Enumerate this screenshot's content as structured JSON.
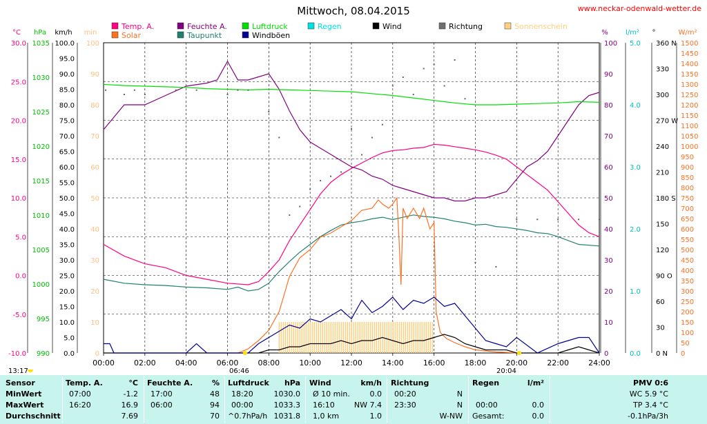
{
  "page": {
    "title": "Mittwoch, 08.04.2015",
    "site": "www.neckar-odenwald-wetter.de",
    "sunrise": "06:46",
    "sunset": "20:04",
    "moonrise": "13:17"
  },
  "chart_data": {
    "type": "line",
    "title": "Mittwoch, 08.04.2015",
    "xlabel": "",
    "x_range": [
      0,
      24
    ],
    "x_ticks": [
      "00:00",
      "02:00",
      "04:00",
      "06:00",
      "08:00",
      "10:00",
      "12:00",
      "14:00",
      "16:00",
      "18:00",
      "20:00",
      "22:00",
      "24:00"
    ],
    "grid": true,
    "legend_placement": "top",
    "legend": [
      {
        "name": "Temp. A.",
        "color": "#ff0080"
      },
      {
        "name": "Feuchte A.",
        "color": "#800080"
      },
      {
        "name": "Luftdruck",
        "color": "#00e000"
      },
      {
        "name": "Regen",
        "color": "#00e0e0"
      },
      {
        "name": "Wind",
        "color": "#000000"
      },
      {
        "name": "Richtung",
        "color": "#707070"
      },
      {
        "name": "Sonnenschein",
        "color": "#ffd080"
      },
      {
        "name": "Solar",
        "color": "#ff7020"
      },
      {
        "name": "Taupunkt",
        "color": "#208070"
      },
      {
        "name": "Windböen",
        "color": "#000090"
      }
    ],
    "axes": {
      "temp": {
        "unit": "°C",
        "range": [
          -10,
          30
        ],
        "color": "#ff0080",
        "ticks": [
          "30.0",
          "25.0",
          "20.0",
          "15.0",
          "10.0",
          "5.0",
          "0.0",
          "-5.0",
          "-10.0"
        ]
      },
      "pressure": {
        "unit": "hPa",
        "range": [
          990,
          1040
        ],
        "color": "#00c000",
        "ticks": [
          "1035",
          "1030",
          "1025",
          "1020",
          "1015",
          "1010",
          "1005",
          "1000",
          "995",
          "990"
        ]
      },
      "wind": {
        "unit": "km/h",
        "range": [
          0,
          100
        ],
        "color": "#000000",
        "ticks": [
          "100.0",
          "95.0",
          "90.0",
          "85.0",
          "80.0",
          "75.0",
          "70.0",
          "65.0",
          "60.0",
          "55.0",
          "50.0",
          "45.0",
          "40.0",
          "35.0",
          "30.0",
          "25.0",
          "20.0",
          "15.0",
          "10.0",
          "5.0",
          "0.0"
        ]
      },
      "sunshine": {
        "unit": "min",
        "range": [
          0,
          100
        ],
        "color": "#ffd080",
        "ticks": [
          "100",
          "90",
          "80",
          "70",
          "60",
          "50",
          "40",
          "30",
          "20",
          "10",
          "0"
        ]
      },
      "humidity": {
        "unit": "%",
        "range": [
          0,
          100
        ],
        "color": "#800080",
        "ticks": [
          "100",
          "90",
          "80",
          "70",
          "60",
          "50",
          "40",
          "30",
          "20",
          "10",
          "0"
        ]
      },
      "rain": {
        "unit": "l/m²",
        "range": [
          0,
          5
        ],
        "color": "#00c0c0",
        "ticks": [
          "5.0",
          "4.0",
          "3.0",
          "2.0",
          "1.0",
          "0.0"
        ]
      },
      "direction": {
        "unit": "°",
        "range": [
          0,
          360
        ],
        "color": "#000000",
        "ticks": [
          "360 N",
          "330",
          "300",
          "270 W",
          "240",
          "210",
          "180 S",
          "150",
          "120",
          "90 O",
          "60",
          "30",
          "0 N"
        ]
      },
      "solar": {
        "unit": "W/m²",
        "range": [
          0,
          1500
        ],
        "color": "#ff7020",
        "ticks": [
          "1500",
          "1450",
          "1400",
          "1350",
          "1300",
          "1250",
          "1200",
          "1150",
          "1100",
          "1050",
          "1000",
          "950",
          "900",
          "850",
          "800",
          "750",
          "700",
          "650",
          "600",
          "550",
          "500",
          "450",
          "400",
          "350",
          "300",
          "250",
          "200",
          "150",
          "100",
          "50",
          "0"
        ]
      }
    },
    "series": [
      {
        "name": "Temp. A.",
        "axis": "temp",
        "color": "#ff0080",
        "x": [
          0,
          1,
          2,
          3,
          4,
          5,
          6,
          7,
          7.5,
          8,
          8.5,
          9,
          9.5,
          10,
          10.5,
          11,
          11.5,
          12,
          12.5,
          13,
          13.5,
          14,
          14.5,
          15,
          15.5,
          16,
          16.5,
          17,
          17.5,
          18,
          18.5,
          19,
          19.5,
          20,
          20.5,
          21,
          21.5,
          22,
          22.5,
          23,
          23.5,
          24
        ],
        "values": [
          4.0,
          2.5,
          1.5,
          1.0,
          0.0,
          -0.5,
          -1.0,
          -1.2,
          -0.8,
          0.5,
          2.0,
          4.5,
          6.5,
          8.5,
          10.5,
          12.0,
          13.0,
          13.8,
          14.5,
          15.2,
          15.8,
          16.1,
          16.2,
          16.4,
          16.5,
          16.9,
          16.8,
          16.6,
          16.4,
          16.2,
          15.9,
          15.5,
          15.0,
          14.0,
          13.0,
          12.0,
          11.0,
          9.5,
          8.0,
          6.5,
          5.5,
          5.0
        ]
      },
      {
        "name": "Feuchte A.",
        "axis": "humidity",
        "color": "#800080",
        "x": [
          0,
          0.5,
          1,
          2,
          3,
          4,
          5,
          5.5,
          6,
          6.5,
          7,
          7.5,
          8,
          8.5,
          9,
          9.5,
          10,
          10.5,
          11,
          11.5,
          12,
          12.5,
          13,
          13.5,
          14,
          14.5,
          15,
          15.5,
          16,
          16.5,
          17,
          17.5,
          18,
          18.5,
          19,
          19.5,
          20,
          20.5,
          21,
          21.5,
          22,
          22.5,
          23,
          23.5,
          24
        ],
        "values": [
          72,
          76,
          80,
          80,
          83,
          86,
          87,
          88,
          94,
          88,
          88,
          89,
          90,
          85,
          78,
          72,
          68,
          66,
          64,
          62,
          60,
          59,
          57,
          56,
          54,
          53,
          52,
          51,
          50,
          50,
          49,
          49,
          50,
          50,
          51,
          52,
          56,
          60,
          62,
          65,
          70,
          75,
          80,
          83,
          84
        ]
      },
      {
        "name": "Luftdruck",
        "axis": "pressure",
        "color": "#00e000",
        "x": [
          0,
          1,
          2,
          3,
          4,
          5,
          6,
          7,
          8,
          9,
          10,
          11,
          12,
          13,
          14,
          15,
          16,
          17,
          18,
          19,
          20,
          21,
          22,
          23,
          24
        ],
        "values": [
          1033.3,
          1033.1,
          1033.0,
          1032.9,
          1032.8,
          1032.6,
          1032.5,
          1032.4,
          1032.5,
          1032.4,
          1032.3,
          1032.2,
          1032.1,
          1031.8,
          1031.5,
          1031.1,
          1030.7,
          1030.3,
          1030.0,
          1030.0,
          1030.1,
          1030.2,
          1030.3,
          1030.5,
          1030.4
        ]
      },
      {
        "name": "Taupunkt",
        "axis": "temp",
        "color": "#208070",
        "x": [
          0,
          1,
          2,
          3,
          4,
          5,
          6,
          6.5,
          7,
          7.5,
          8,
          8.5,
          9,
          9.5,
          10,
          10.5,
          11,
          11.5,
          12,
          12.5,
          13,
          13.5,
          14,
          14.5,
          15,
          15.5,
          16,
          16.5,
          17,
          17.5,
          18,
          18.5,
          19,
          19.5,
          20,
          20.5,
          21,
          21.5,
          22,
          22.5,
          23,
          24
        ],
        "values": [
          -0.5,
          -1.0,
          -1.2,
          -1.3,
          -1.5,
          -1.6,
          -1.8,
          -1.5,
          -2.0,
          -1.8,
          -1.0,
          0.5,
          1.8,
          3.0,
          4.0,
          5.0,
          5.8,
          6.5,
          6.8,
          7.0,
          7.3,
          7.5,
          7.2,
          7.5,
          7.8,
          7.6,
          7.5,
          7.3,
          7.0,
          6.8,
          6.5,
          6.6,
          6.3,
          6.2,
          6.0,
          5.8,
          5.5,
          5.4,
          5.0,
          4.5,
          4.0,
          3.8
        ]
      },
      {
        "name": "Solar",
        "axis": "solar",
        "color": "#ff7020",
        "x": [
          6.5,
          7,
          7.5,
          8,
          8.5,
          9,
          9.5,
          10,
          10.5,
          11,
          11.5,
          12,
          12.5,
          13,
          13.3,
          13.5,
          13.8,
          14,
          14.2,
          14.3,
          14.4,
          14.5,
          14.7,
          15,
          15.3,
          15.5,
          15.8,
          16,
          16.1,
          16.3,
          16.6,
          17,
          17.5,
          18,
          18.5,
          19,
          19.5,
          20
        ],
        "values": [
          0,
          20,
          60,
          110,
          200,
          370,
          460,
          500,
          560,
          580,
          610,
          640,
          690,
          700,
          740,
          720,
          700,
          720,
          750,
          560,
          330,
          700,
          650,
          700,
          650,
          700,
          600,
          630,
          200,
          100,
          70,
          50,
          30,
          15,
          10,
          5,
          3,
          0
        ]
      },
      {
        "name": "Wind",
        "axis": "wind",
        "color": "#000000",
        "x": [
          0,
          2,
          4,
          6,
          7,
          7.5,
          8,
          8.5,
          9,
          9.5,
          10,
          10.5,
          11,
          11.5,
          12,
          12.5,
          13,
          13.5,
          14,
          14.5,
          15,
          15.5,
          16,
          16.5,
          17,
          17.5,
          18,
          18.5,
          19,
          19.5,
          20,
          21,
          22,
          22.5,
          23,
          23.5,
          24
        ],
        "values": [
          0,
          0,
          0,
          0,
          0,
          0,
          1,
          1,
          2,
          2,
          3,
          3,
          3,
          4,
          3,
          4,
          4,
          5,
          4,
          3,
          4,
          4,
          5,
          6,
          5,
          3,
          2,
          1,
          1,
          1,
          0,
          0,
          0,
          1,
          2,
          1,
          0
        ]
      },
      {
        "name": "Windböen",
        "axis": "wind",
        "color": "#000090",
        "x": [
          0,
          0.3,
          0.5,
          1,
          2,
          3,
          4,
          4.5,
          5,
          6,
          7,
          7.5,
          8,
          8.5,
          9,
          9.5,
          10,
          10.5,
          11,
          11.5,
          12,
          12.5,
          13,
          13.5,
          14,
          14.5,
          15,
          15.5,
          16,
          16.5,
          17,
          17.5,
          18,
          18.5,
          19,
          19.5,
          20,
          21,
          22,
          22.5,
          23,
          23.5,
          24
        ],
        "values": [
          3,
          3,
          0,
          0,
          0,
          0,
          0,
          3,
          0,
          0,
          0,
          3,
          5,
          7,
          9,
          8,
          11,
          10,
          12,
          14,
          11,
          17,
          13,
          15,
          18,
          14,
          17,
          16,
          18,
          15,
          16,
          12,
          8,
          4,
          3,
          2,
          5,
          0,
          3,
          4,
          5,
          5,
          0
        ]
      },
      {
        "name": "Sonnenschein",
        "axis": "sunshine",
        "color": "#ffd080",
        "x": [
          8.5,
          16
        ],
        "values": [
          10,
          10
        ]
      }
    ],
    "richtung_points": [
      {
        "x": 0.1,
        "y": 305
      },
      {
        "x": 1,
        "y": 300
      },
      {
        "x": 1.5,
        "y": 305
      },
      {
        "x": 2,
        "y": 300
      },
      {
        "x": 3.5,
        "y": 305
      },
      {
        "x": 4.5,
        "y": 305
      },
      {
        "x": 6,
        "y": 300
      },
      {
        "x": 6.5,
        "y": 305
      },
      {
        "x": 7,
        "y": 305
      },
      {
        "x": 8,
        "y": 280
      },
      {
        "x": 8.5,
        "y": 250
      },
      {
        "x": 9,
        "y": 160
      },
      {
        "x": 9.5,
        "y": 170
      },
      {
        "x": 10,
        "y": 190
      },
      {
        "x": 10.5,
        "y": 200
      },
      {
        "x": 11,
        "y": 205
      },
      {
        "x": 11.5,
        "y": 210
      },
      {
        "x": 12,
        "y": 260
      },
      {
        "x": 12.5,
        "y": 230
      },
      {
        "x": 13,
        "y": 250
      },
      {
        "x": 13.5,
        "y": 265
      },
      {
        "x": 14,
        "y": 310
      },
      {
        "x": 14.5,
        "y": 320
      },
      {
        "x": 15,
        "y": 300
      },
      {
        "x": 15.5,
        "y": 330
      },
      {
        "x": 16,
        "y": 335
      },
      {
        "x": 16.5,
        "y": 310
      },
      {
        "x": 17,
        "y": 340
      },
      {
        "x": 17.5,
        "y": 295
      },
      {
        "x": 18,
        "y": 105
      },
      {
        "x": 19,
        "y": 100
      },
      {
        "x": 20,
        "y": 155
      },
      {
        "x": 21,
        "y": 155
      },
      {
        "x": 22,
        "y": 155
      },
      {
        "x": 23,
        "y": 155
      },
      {
        "x": 24,
        "y": 155
      }
    ]
  },
  "table": {
    "headers": {
      "sensor": "Sensor",
      "temp": "Temp. A.",
      "temp_unit": "°C",
      "feuchte": "Feuchte A.",
      "feuchte_unit": "%",
      "luftdruck": "Luftdruck",
      "luftdruck_unit": "hPa",
      "wind": "Wind",
      "wind_unit": "km/h",
      "richtung": "Richtung",
      "regen": "Regen",
      "regen_unit": "l/m²",
      "pmv": "PMV 0:6"
    },
    "rows": [
      {
        "label": "MinWert",
        "temp_time": "07:00",
        "temp_val": "-1.2",
        "feuchte_time": "17:00",
        "feuchte_val": "48",
        "druck_time": "18:20",
        "druck_val": "1030.0",
        "wind_a": "Ø 10 min.",
        "wind_val": "0.0",
        "richt_time": "00:20",
        "richt_val": "N",
        "regen_time": "",
        "regen_val": "",
        "pmv": "WC 5.9 °C"
      },
      {
        "label": "MaxWert",
        "temp_time": "16:20",
        "temp_val": "16.9",
        "feuchte_time": "06:00",
        "feuchte_val": "94",
        "druck_time": "00:00",
        "druck_val": "1033.3",
        "wind_a": "16:10",
        "wind_b": "NW 7.4",
        "wind_val": "",
        "richt_time": "23:30",
        "richt_val": "N",
        "regen_time": "00:00",
        "regen_val": "0.0",
        "pmv": "TP 3.4 °C"
      },
      {
        "label": "Durchschnitt",
        "temp_time": "",
        "temp_val": "7.69",
        "feuchte_time": "",
        "feuchte_val": "70",
        "druck_time": "^0.7hPa/h",
        "druck_val": "1031.8",
        "wind_a": "1,0 km",
        "wind_val": "1.0",
        "richt_time": "",
        "richt_val": "W-NW",
        "regen_time": "Gesamt:",
        "regen_val": "0.0",
        "pmv": "-0.1hPa/3h"
      }
    ]
  }
}
